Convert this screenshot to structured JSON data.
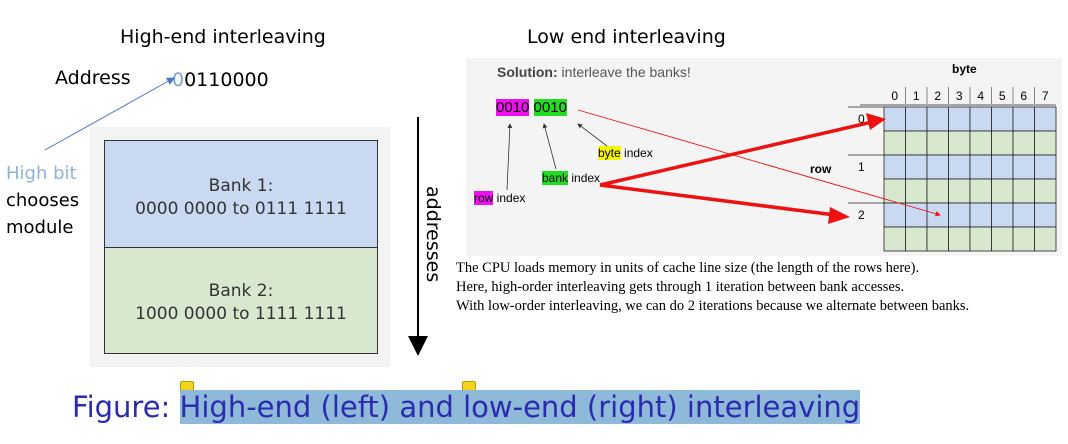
{
  "left": {
    "title": "High-end interleaving",
    "address_label": "Address",
    "address_first_bit": "0",
    "address_rest": "0110000",
    "high_bit_label": "High bit",
    "chooses_label": "chooses",
    "module_label": "module",
    "bank1_title": "Bank 1:",
    "bank1_range": "0000 0000 to 0111 1111",
    "bank2_title": "Bank 2:",
    "bank2_range": "1000 0000 to 1111 1111",
    "addresses_label": "addresses"
  },
  "right": {
    "title": "Low end interleaving",
    "solution_bold": "Solution:",
    "solution_text": " interleave the banks!",
    "byte_header": "byte",
    "bits_row": "0010",
    "bits_bank": "0010",
    "byte_index_hl": "byte",
    "bank_index_hl": "bank",
    "row_index_hl": "row",
    "index_word": " index",
    "row_header": "row",
    "col_labels": [
      "0",
      "1",
      "2",
      "3",
      "4",
      "5",
      "6",
      "7"
    ],
    "row_labels": [
      "0",
      "1",
      "2"
    ],
    "body_lines": [
      "The CPU loads memory in units of cache line size (the length of the rows here).",
      "Here, high-order interleaving gets through 1 iteration between bank accesses.",
      "With low-order interleaving, we can do 2 iterations because we alternate between banks."
    ],
    "grid_colors": [
      "#c9d9f2",
      "#d8e8cf"
    ]
  },
  "caption": {
    "prefix": "Figure: ",
    "text": "High-end (left) and low-end (right) interleaving"
  }
}
